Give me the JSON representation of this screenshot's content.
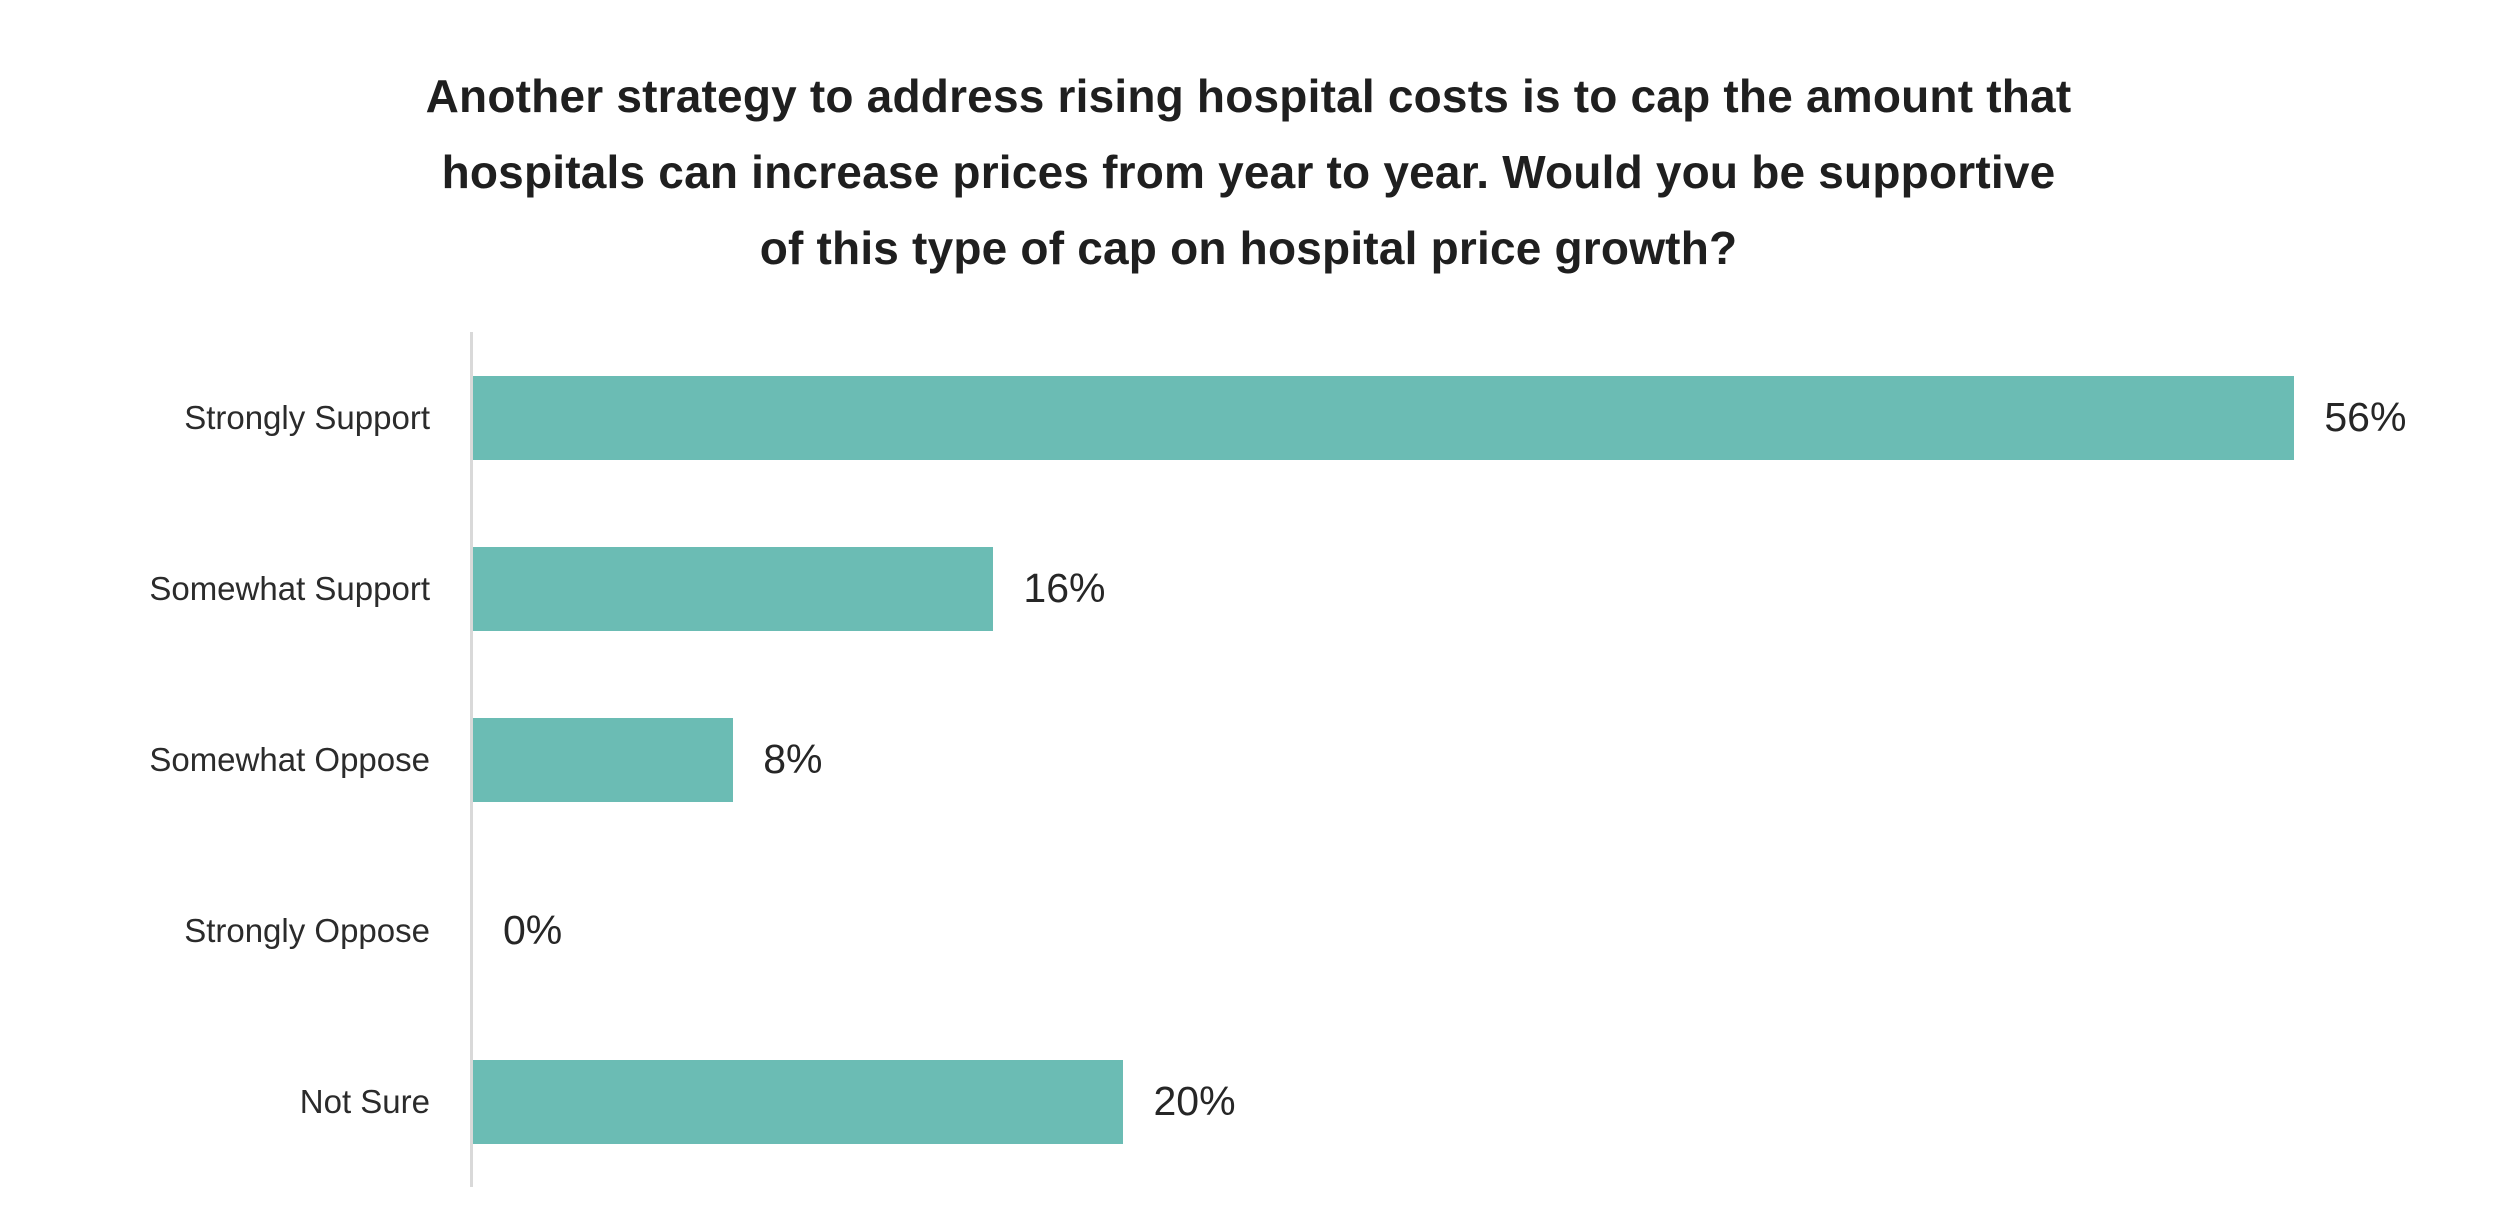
{
  "chart_data": {
    "type": "bar",
    "orientation": "horizontal",
    "title": "Another strategy to address rising hospital costs is to cap the amount that hospitals can increase prices from year to year. Would you be supportive of this type of cap on hospital price growth?",
    "title_lines": [
      "Another strategy to address rising hospital costs is to cap the amount that",
      "hospitals can increase prices from year to year. Would you be supportive",
      "of this type of cap on hospital price growth?"
    ],
    "categories": [
      "Strongly Support",
      "Somewhat Support",
      "Somewhat Oppose",
      "Strongly Oppose",
      "Not Sure"
    ],
    "values": [
      56,
      16,
      8,
      0,
      20
    ],
    "value_labels": [
      "56%",
      "16%",
      "8%",
      "0%",
      "20%"
    ],
    "xlabel": "",
    "ylabel": "",
    "xlim": [
      0,
      61
    ],
    "grid": false,
    "legend": false,
    "colors": {
      "bar": "#6BBCB4",
      "axis_line": "#D9D9D9",
      "title_text": "#1F1F1F",
      "category_text": "#2B2B2B",
      "value_text": "#262626",
      "background": "#FFFFFF"
    }
  }
}
